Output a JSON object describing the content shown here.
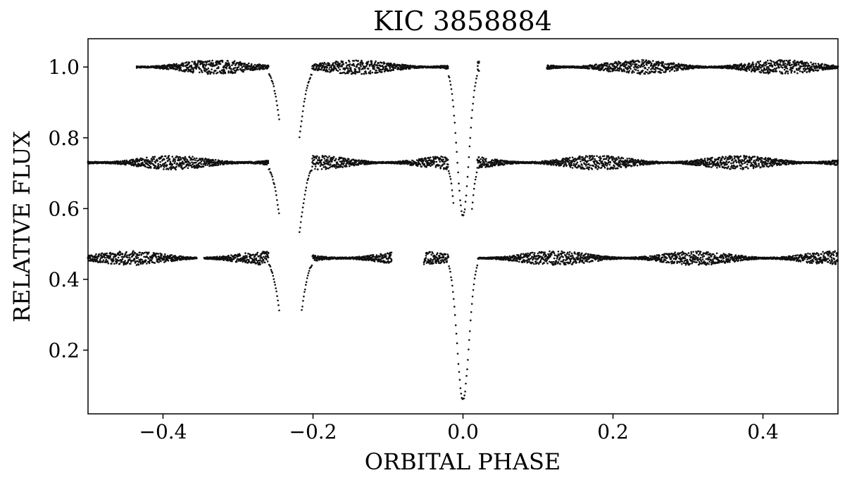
{
  "chart_data": {
    "type": "scatter",
    "title": "KIC 3858884",
    "xlabel": "ORBITAL PHASE",
    "ylabel": "RELATIVE FLUX",
    "xlim": [
      -0.5,
      0.5
    ],
    "ylim": [
      0.02,
      1.08
    ],
    "xticks": [
      -0.4,
      -0.2,
      0.0,
      0.2,
      0.4
    ],
    "xtick_labels": [
      "−0.4",
      "−0.2",
      "0.0",
      "0.2",
      "0.4"
    ],
    "yticks": [
      0.2,
      0.4,
      0.6,
      0.8,
      1.0
    ],
    "ytick_labels": [
      "0.2",
      "0.4",
      "0.6",
      "0.8",
      "1.0"
    ],
    "grid": false,
    "marker_color": "#111111",
    "series": [
      {
        "baseline": 1.0,
        "segments": [
          [
            -0.435,
            -0.245
          ],
          [
            -0.218,
            0.022
          ],
          [
            0.112,
            0.5
          ]
        ],
        "eclipses": [
          {
            "center": -0.23,
            "depth": 0.33,
            "half_width": 0.018
          },
          {
            "center": 0.0,
            "depth": 0.42,
            "half_width": 0.012
          }
        ]
      },
      {
        "baseline": 0.73,
        "segments": [
          [
            -0.5,
            -0.245
          ],
          [
            -0.218,
            -0.012
          ],
          [
            0.012,
            0.5
          ]
        ],
        "eclipses": [
          {
            "center": -0.23,
            "depth": 0.33,
            "half_width": 0.018
          },
          {
            "center": 0.0,
            "depth": 0.42,
            "half_width": 0.012
          }
        ]
      },
      {
        "baseline": 0.46,
        "segments": [
          [
            -0.5,
            -0.355
          ],
          [
            -0.345,
            -0.245
          ],
          [
            -0.215,
            -0.095
          ],
          [
            -0.052,
            0.5
          ]
        ],
        "eclipses": [
          {
            "center": -0.23,
            "depth": 0.33,
            "half_width": 0.018
          },
          {
            "center": 0.0,
            "depth": 0.4,
            "half_width": 0.012
          }
        ]
      }
    ]
  }
}
